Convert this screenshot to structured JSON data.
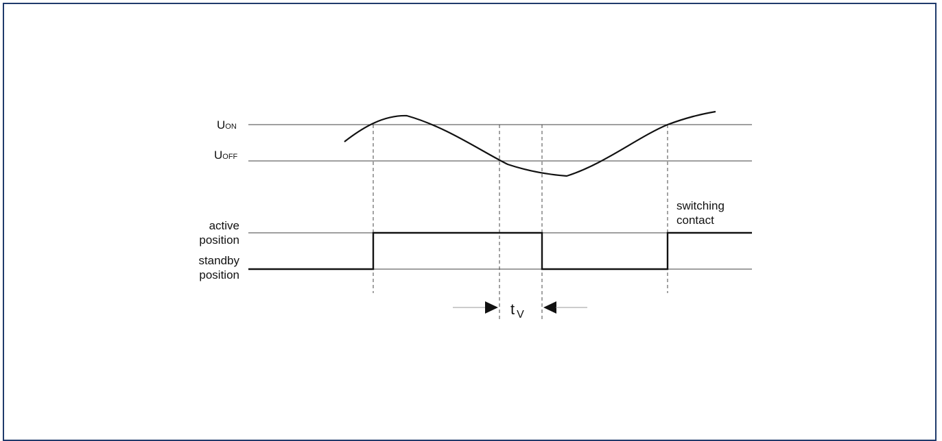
{
  "diagram": {
    "u_on": {
      "base": "U",
      "sub": "ON"
    },
    "u_off": {
      "base": "U",
      "sub": "OFF"
    },
    "active_line1": "active",
    "active_line2": "position",
    "standby_line1": "standby",
    "standby_line2": "position",
    "switching_line1": "switching",
    "switching_line2": "contact",
    "delay_label": {
      "base": "t",
      "sub": "V"
    }
  },
  "colors": {
    "frame": "#1f3a6b",
    "stroke": "#111111",
    "thin_line": "#666666",
    "dashed": "#444444"
  }
}
